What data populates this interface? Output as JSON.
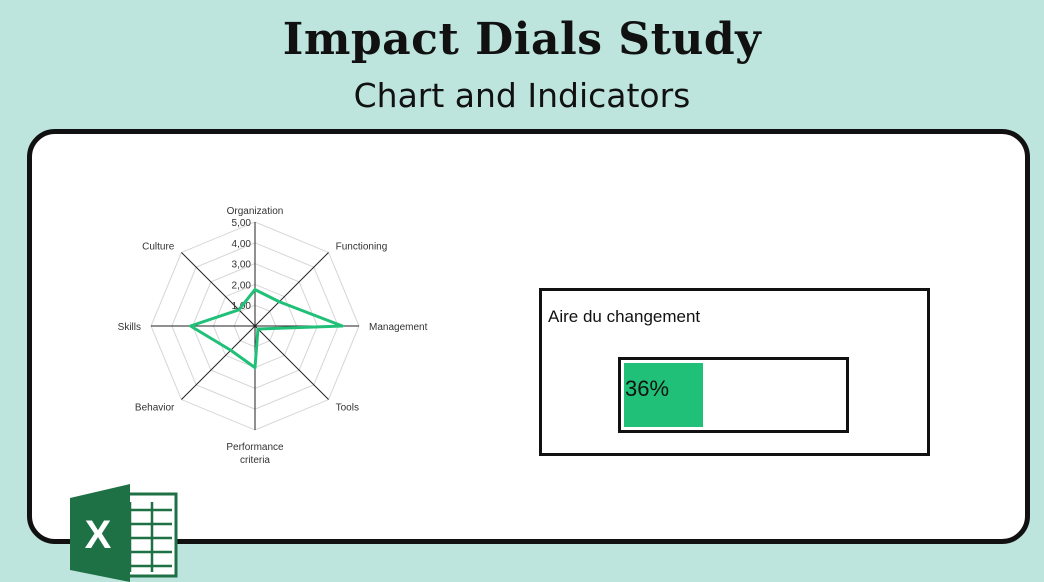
{
  "header": {
    "title": "Impact Dials Study",
    "subtitle": "Chart and Indicators"
  },
  "colors": {
    "background": "#bde5dd",
    "accent_green": "#21c078",
    "excel_green_dark": "#1e7145",
    "excel_green_light": "#2e9b5f"
  },
  "chart_data": {
    "type": "radar",
    "axes": [
      "Organization",
      "Functioning",
      "Management",
      "Tools",
      "Performance criteria",
      "Behavior",
      "Skills",
      "Culture"
    ],
    "tick_labels": [
      "1,00",
      "2,00",
      "3,00",
      "4,00",
      "5,00"
    ],
    "rlim": [
      0,
      5
    ],
    "grid": true,
    "series": [
      {
        "values": [
          1.75,
          1.65,
          4.2,
          0.2,
          2.0,
          1.65,
          3.1,
          1.1
        ]
      }
    ]
  },
  "indicator": {
    "title": "Aire du changement",
    "value_label": "36%",
    "value": 0.36
  },
  "logo": {
    "icon": "excel-icon",
    "letter": "X"
  }
}
